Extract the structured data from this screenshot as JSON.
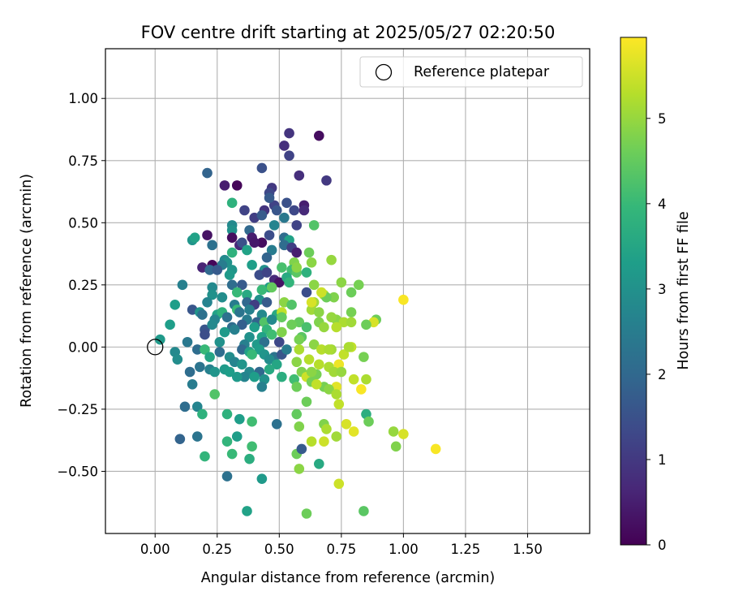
{
  "chart_data": {
    "type": "scatter",
    "title": "FOV centre drift starting at 2025/05/27 02:20:50",
    "xlabel": "Angular distance from reference (arcmin)",
    "ylabel": "Rotation from reference (arcmin)",
    "xlim": [
      -0.2,
      1.75
    ],
    "ylim": [
      -0.75,
      1.2
    ],
    "xticks": [
      "0.00",
      "0.25",
      "0.50",
      "0.75",
      "1.00",
      "1.25",
      "1.50"
    ],
    "xtick_values": [
      0.0,
      0.25,
      0.5,
      0.75,
      1.0,
      1.25,
      1.5
    ],
    "yticks": [
      "−0.50",
      "−0.25",
      "0.00",
      "0.25",
      "0.50",
      "0.75",
      "1.00"
    ],
    "ytick_values": [
      -0.5,
      -0.25,
      0.0,
      0.25,
      0.5,
      0.75,
      1.0
    ],
    "grid": true,
    "legend": {
      "placement": "upper right",
      "entries": [
        "Reference platepar"
      ]
    },
    "reference_point": {
      "x": 0.0,
      "y": 0.0,
      "style": "hollow-circle"
    },
    "colorbar": {
      "label": "Hours from first FF file",
      "colormap": "viridis",
      "range": [
        0,
        5.95
      ],
      "ticks": [
        "0",
        "1",
        "2",
        "3",
        "4",
        "5"
      ],
      "tick_values": [
        0,
        1,
        2,
        3,
        4,
        5
      ]
    },
    "points": [
      [
        0.66,
        0.85,
        0.2
      ],
      [
        0.54,
        0.86,
        0.9
      ],
      [
        0.52,
        0.81,
        0.8
      ],
      [
        0.54,
        0.77,
        1.2
      ],
      [
        0.43,
        0.72,
        1.5
      ],
      [
        0.69,
        0.67,
        1.0
      ],
      [
        0.58,
        0.69,
        0.8
      ],
      [
        0.33,
        0.65,
        0.1
      ],
      [
        0.28,
        0.65,
        0.5
      ],
      [
        0.21,
        0.7,
        1.9
      ],
      [
        0.47,
        0.64,
        1.0
      ],
      [
        0.46,
        0.62,
        1.3
      ],
      [
        0.6,
        0.57,
        0.5
      ],
      [
        0.48,
        0.57,
        1.2
      ],
      [
        0.53,
        0.58,
        1.5
      ],
      [
        0.44,
        0.55,
        0.9
      ],
      [
        0.36,
        0.55,
        1.2
      ],
      [
        0.31,
        0.58,
        3.8
      ],
      [
        0.56,
        0.55,
        1.3
      ],
      [
        0.49,
        0.55,
        1.6
      ],
      [
        0.6,
        0.55,
        0.7
      ],
      [
        0.46,
        0.6,
        1.7
      ],
      [
        0.4,
        0.52,
        1.1
      ],
      [
        0.43,
        0.53,
        1.7
      ],
      [
        0.52,
        0.52,
        2.4
      ],
      [
        0.31,
        0.49,
        2.8
      ],
      [
        0.31,
        0.47,
        3.0
      ],
      [
        0.38,
        0.47,
        2.0
      ],
      [
        0.48,
        0.49,
        2.7
      ],
      [
        0.57,
        0.49,
        1.2
      ],
      [
        0.64,
        0.49,
        4.3
      ],
      [
        0.21,
        0.45,
        0.3
      ],
      [
        0.31,
        0.44,
        0.2
      ],
      [
        0.39,
        0.44,
        0.5
      ],
      [
        0.43,
        0.42,
        0.2
      ],
      [
        0.46,
        0.45,
        1.4
      ],
      [
        0.52,
        0.44,
        2.1
      ],
      [
        0.54,
        0.43,
        3.4
      ],
      [
        0.34,
        0.41,
        0.7
      ],
      [
        0.35,
        0.42,
        1.5
      ],
      [
        0.4,
        0.42,
        0.4
      ],
      [
        0.52,
        0.41,
        2.1
      ],
      [
        0.55,
        0.4,
        1.1
      ],
      [
        0.15,
        0.43,
        3.1
      ],
      [
        0.23,
        0.41,
        2.2
      ],
      [
        0.16,
        0.44,
        3.4
      ],
      [
        0.37,
        0.39,
        3.4
      ],
      [
        0.47,
        0.39,
        2.5
      ],
      [
        0.57,
        0.38,
        0.5
      ],
      [
        0.62,
        0.38,
        4.6
      ],
      [
        0.31,
        0.38,
        3.8
      ],
      [
        0.45,
        0.36,
        1.9
      ],
      [
        0.28,
        0.35,
        2.8
      ],
      [
        0.29,
        0.34,
        3.0
      ],
      [
        0.27,
        0.33,
        2.5
      ],
      [
        0.23,
        0.33,
        0.1
      ],
      [
        0.19,
        0.32,
        0.6
      ],
      [
        0.22,
        0.31,
        2.0
      ],
      [
        0.31,
        0.31,
        3.1
      ],
      [
        0.39,
        0.33,
        3.3
      ],
      [
        0.44,
        0.31,
        3.0
      ],
      [
        0.51,
        0.32,
        4.2
      ],
      [
        0.56,
        0.34,
        4.8
      ],
      [
        0.63,
        0.34,
        4.9
      ],
      [
        0.71,
        0.35,
        5.0
      ],
      [
        0.25,
        0.31,
        1.7
      ],
      [
        0.3,
        0.29,
        3.2
      ],
      [
        0.42,
        0.29,
        1.4
      ],
      [
        0.45,
        0.3,
        1.2
      ],
      [
        0.48,
        0.27,
        0.7
      ],
      [
        0.5,
        0.26,
        0.3
      ],
      [
        0.55,
        0.31,
        4.1
      ],
      [
        0.57,
        0.3,
        4.4
      ],
      [
        0.61,
        0.3,
        3.8
      ],
      [
        0.53,
        0.28,
        3.6
      ],
      [
        0.54,
        0.26,
        3.9
      ],
      [
        0.11,
        0.25,
        2.6
      ],
      [
        0.23,
        0.24,
        2.8
      ],
      [
        0.31,
        0.25,
        2.1
      ],
      [
        0.35,
        0.25,
        1.7
      ],
      [
        0.46,
        0.24,
        3.3
      ],
      [
        0.43,
        0.23,
        4.0
      ],
      [
        0.64,
        0.25,
        4.9
      ],
      [
        0.75,
        0.26,
        4.9
      ],
      [
        0.82,
        0.25,
        4.7
      ],
      [
        0.23,
        0.21,
        3.0
      ],
      [
        0.27,
        0.2,
        2.9
      ],
      [
        0.33,
        0.22,
        4.0
      ],
      [
        0.37,
        0.21,
        3.6
      ],
      [
        0.42,
        0.19,
        3.0
      ],
      [
        0.61,
        0.22,
        1.4
      ],
      [
        0.68,
        0.21,
        5.2
      ],
      [
        0.72,
        0.2,
        4.8
      ],
      [
        0.79,
        0.22,
        4.6
      ],
      [
        0.37,
        0.18,
        2.0
      ],
      [
        0.4,
        0.17,
        1.1
      ],
      [
        0.45,
        0.18,
        1.7
      ],
      [
        0.52,
        0.18,
        4.9
      ],
      [
        0.55,
        0.17,
        4.3
      ],
      [
        0.64,
        0.18,
        5.1
      ],
      [
        0.69,
        0.2,
        4.6
      ],
      [
        0.08,
        0.17,
        3.3
      ],
      [
        0.21,
        0.18,
        2.7
      ],
      [
        0.32,
        0.17,
        2.5
      ],
      [
        0.15,
        0.15,
        1.6
      ],
      [
        0.18,
        0.14,
        3.1
      ],
      [
        0.19,
        0.13,
        2.2
      ],
      [
        0.25,
        0.13,
        3.4
      ],
      [
        0.27,
        0.14,
        3.8
      ],
      [
        0.33,
        0.15,
        4.0
      ],
      [
        0.38,
        0.15,
        2.6
      ],
      [
        0.34,
        0.14,
        2.3
      ],
      [
        0.43,
        0.13,
        2.8
      ],
      [
        0.49,
        0.13,
        3.6
      ],
      [
        0.51,
        0.14,
        5.4
      ],
      [
        0.63,
        0.15,
        5.1
      ],
      [
        0.66,
        0.14,
        4.9
      ],
      [
        0.73,
        0.11,
        4.9
      ],
      [
        0.79,
        0.14,
        4.7
      ],
      [
        0.89,
        0.11,
        4.6
      ],
      [
        1.0,
        0.19,
        5.9
      ],
      [
        0.24,
        0.11,
        2.7
      ],
      [
        0.29,
        0.12,
        2.2
      ],
      [
        0.37,
        0.11,
        2.5
      ],
      [
        0.41,
        0.1,
        1.9
      ],
      [
        0.44,
        0.1,
        4.3
      ],
      [
        0.47,
        0.11,
        2.8
      ],
      [
        0.51,
        0.12,
        4.5
      ],
      [
        0.58,
        0.1,
        4.5
      ],
      [
        0.66,
        0.1,
        4.8
      ],
      [
        0.71,
        0.12,
        5.0
      ],
      [
        0.76,
        0.1,
        5.2
      ],
      [
        0.88,
        0.1,
        5.6
      ],
      [
        0.06,
        0.09,
        3.3
      ],
      [
        0.2,
        0.07,
        1.6
      ],
      [
        0.23,
        0.09,
        2.8
      ],
      [
        0.31,
        0.08,
        2.1
      ],
      [
        0.35,
        0.09,
        1.8
      ],
      [
        0.4,
        0.08,
        3.3
      ],
      [
        0.45,
        0.07,
        3.9
      ],
      [
        0.51,
        0.06,
        4.8
      ],
      [
        0.55,
        0.09,
        4.6
      ],
      [
        0.61,
        0.08,
        4.2
      ],
      [
        0.68,
        0.08,
        5.0
      ],
      [
        0.73,
        0.08,
        5.3
      ],
      [
        0.79,
        0.1,
        5.1
      ],
      [
        0.85,
        0.09,
        4.6
      ],
      [
        0.2,
        0.05,
        1.4
      ],
      [
        0.28,
        0.06,
        3.2
      ],
      [
        0.32,
        0.07,
        2.6
      ],
      [
        0.38,
        0.04,
        3.0
      ],
      [
        0.43,
        0.04,
        3.4
      ],
      [
        0.47,
        0.05,
        4.1
      ],
      [
        0.59,
        0.04,
        4.4
      ],
      [
        0.02,
        0.03,
        3.2
      ],
      [
        0.13,
        0.02,
        2.4
      ],
      [
        0.26,
        0.02,
        3.0
      ],
      [
        0.36,
        0.01,
        2.6
      ],
      [
        0.41,
        0.01,
        3.2
      ],
      [
        0.44,
        0.02,
        2.2
      ],
      [
        0.5,
        0.02,
        1.3
      ],
      [
        0.58,
        0.03,
        4.7
      ],
      [
        0.64,
        0.01,
        4.9
      ],
      [
        0.71,
        -0.01,
        5.1
      ],
      [
        0.79,
        0.0,
        5.4
      ],
      [
        0.08,
        -0.02,
        2.8
      ],
      [
        0.17,
        -0.01,
        2.1
      ],
      [
        0.2,
        -0.01,
        4.0
      ],
      [
        0.26,
        -0.02,
        2.1
      ],
      [
        0.3,
        -0.04,
        2.9
      ],
      [
        0.35,
        -0.01,
        2.0
      ],
      [
        0.38,
        -0.02,
        3.4
      ],
      [
        0.42,
        -0.01,
        3.3
      ],
      [
        0.44,
        -0.03,
        3.1
      ],
      [
        0.48,
        -0.04,
        2.3
      ],
      [
        0.51,
        -0.03,
        1.6
      ],
      [
        0.53,
        -0.01,
        2.5
      ],
      [
        0.58,
        -0.01,
        5.2
      ],
      [
        0.62,
        -0.05,
        5.3
      ],
      [
        0.67,
        -0.01,
        5.3
      ],
      [
        0.76,
        -0.03,
        5.4
      ],
      [
        0.78,
        0.0,
        5.2
      ],
      [
        0.84,
        -0.04,
        4.7
      ],
      [
        0.09,
        -0.05,
        2.9
      ],
      [
        0.22,
        -0.04,
        3.5
      ],
      [
        0.32,
        -0.06,
        2.7
      ],
      [
        0.35,
        -0.07,
        3.1
      ],
      [
        0.39,
        -0.03,
        4.0
      ],
      [
        0.46,
        -0.05,
        2.9
      ],
      [
        0.49,
        -0.07,
        3.5
      ],
      [
        0.57,
        -0.06,
        4.9
      ],
      [
        0.66,
        -0.07,
        5.3
      ],
      [
        0.7,
        -0.08,
        5.2
      ],
      [
        0.74,
        -0.07,
        5.8
      ],
      [
        0.18,
        -0.08,
        2.3
      ],
      [
        0.22,
        -0.09,
        2.6
      ],
      [
        0.28,
        -0.09,
        3.2
      ],
      [
        0.3,
        -0.1,
        3.3
      ],
      [
        0.38,
        -0.1,
        2.8
      ],
      [
        0.42,
        -0.1,
        2.0
      ],
      [
        0.46,
        -0.09,
        3.6
      ],
      [
        0.59,
        -0.1,
        4.8
      ],
      [
        0.65,
        -0.11,
        4.7
      ],
      [
        0.72,
        -0.1,
        5.1
      ],
      [
        0.75,
        -0.1,
        5.0
      ],
      [
        0.14,
        -0.1,
        2.1
      ],
      [
        0.24,
        -0.1,
        3.1
      ],
      [
        0.36,
        -0.12,
        2.7
      ],
      [
        0.4,
        -0.12,
        3.3
      ],
      [
        0.44,
        -0.13,
        3.0
      ],
      [
        0.56,
        -0.13,
        4.1
      ],
      [
        0.61,
        -0.12,
        5.5
      ],
      [
        0.63,
        -0.14,
        4.7
      ],
      [
        0.68,
        -0.16,
        4.7
      ],
      [
        0.73,
        -0.16,
        5.7
      ],
      [
        0.8,
        -0.13,
        5.4
      ],
      [
        0.85,
        -0.13,
        5.2
      ],
      [
        0.15,
        -0.15,
        2.5
      ],
      [
        0.33,
        -0.12,
        3.2
      ],
      [
        0.43,
        -0.16,
        2.6
      ],
      [
        0.51,
        -0.12,
        3.7
      ],
      [
        0.57,
        -0.16,
        4.6
      ],
      [
        0.65,
        -0.15,
        5.4
      ],
      [
        0.7,
        -0.17,
        4.9
      ],
      [
        0.73,
        -0.19,
        5.2
      ],
      [
        0.24,
        -0.19,
        4.3
      ],
      [
        0.61,
        -0.22,
        4.6
      ],
      [
        0.74,
        -0.23,
        5.4
      ],
      [
        0.83,
        -0.17,
        5.9
      ],
      [
        0.12,
        -0.24,
        2.1
      ],
      [
        0.17,
        -0.24,
        2.7
      ],
      [
        0.19,
        -0.27,
        3.8
      ],
      [
        0.29,
        -0.27,
        3.8
      ],
      [
        0.34,
        -0.29,
        3.3
      ],
      [
        0.39,
        -0.3,
        4.1
      ],
      [
        0.49,
        -0.31,
        2.2
      ],
      [
        0.57,
        -0.27,
        4.5
      ],
      [
        0.58,
        -0.32,
        4.8
      ],
      [
        0.68,
        -0.31,
        4.8
      ],
      [
        0.69,
        -0.33,
        5.2
      ],
      [
        0.77,
        -0.31,
        5.6
      ],
      [
        0.8,
        -0.34,
        5.7
      ],
      [
        0.85,
        -0.27,
        3.7
      ],
      [
        0.86,
        -0.3,
        4.6
      ],
      [
        0.96,
        -0.34,
        5.0
      ],
      [
        1.0,
        -0.35,
        5.6
      ],
      [
        0.1,
        -0.37,
        1.9
      ],
      [
        0.17,
        -0.36,
        2.3
      ],
      [
        0.29,
        -0.38,
        3.9
      ],
      [
        0.33,
        -0.36,
        3.3
      ],
      [
        0.39,
        -0.4,
        4.1
      ],
      [
        0.57,
        -0.43,
        4.6
      ],
      [
        0.59,
        -0.41,
        1.7
      ],
      [
        0.63,
        -0.38,
        5.3
      ],
      [
        0.68,
        -0.38,
        5.5
      ],
      [
        0.73,
        -0.36,
        5.1
      ],
      [
        0.97,
        -0.4,
        4.8
      ],
      [
        1.13,
        -0.41,
        5.9
      ],
      [
        0.2,
        -0.44,
        3.9
      ],
      [
        0.31,
        -0.43,
        4.0
      ],
      [
        0.38,
        -0.45,
        3.7
      ],
      [
        0.58,
        -0.49,
        4.9
      ],
      [
        0.66,
        -0.47,
        3.6
      ],
      [
        0.29,
        -0.52,
        2.2
      ],
      [
        0.43,
        -0.53,
        3.2
      ],
      [
        0.74,
        -0.55,
        5.5
      ],
      [
        0.37,
        -0.66,
        3.4
      ],
      [
        0.61,
        -0.67,
        4.6
      ],
      [
        0.84,
        -0.66,
        4.4
      ],
      [
        0.63,
        -0.1,
        4.9
      ],
      [
        0.7,
        -0.01,
        5.2
      ],
      [
        0.47,
        0.24,
        4.5
      ],
      [
        0.57,
        0.32,
        4.9
      ],
      [
        0.63,
        0.18,
        5.6
      ],
      [
        0.67,
        0.22,
        5.5
      ]
    ]
  }
}
